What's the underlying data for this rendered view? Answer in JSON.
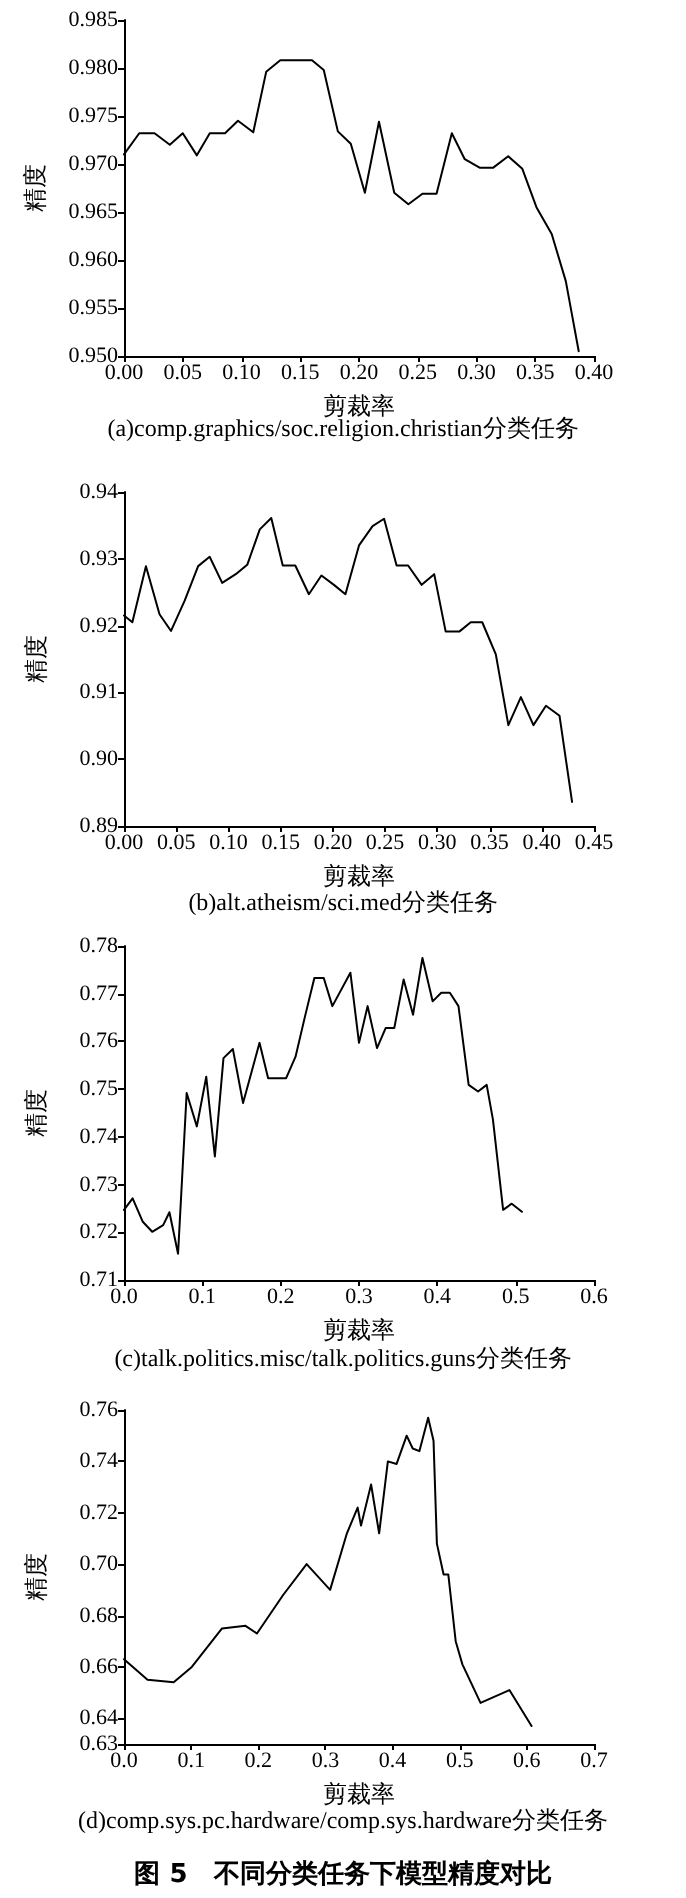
{
  "chart_data": [
    {
      "type": "line",
      "title": "(a)comp.graphics/soc.religion.christian分类任务",
      "xlabel": "剪裁率",
      "ylabel": "精度",
      "color": "#000000",
      "marker": "none",
      "line_style": "solid",
      "grid": false,
      "x": [
        0,
        0.013,
        0.026,
        0.039,
        0.05,
        0.062,
        0.073,
        0.086,
        0.097,
        0.11,
        0.121,
        0.133,
        0.16,
        0.17,
        0.182,
        0.193,
        0.205,
        0.217,
        0.23,
        0.242,
        0.254,
        0.266,
        0.279,
        0.29,
        0.303,
        0.314,
        0.327,
        0.339,
        0.351,
        0.364,
        0.376,
        0.387
      ],
      "values": [
        0.971,
        0.9732,
        0.9732,
        0.972,
        0.9732,
        0.9709,
        0.9732,
        0.9732,
        0.9745,
        0.9733,
        0.9796,
        0.9808,
        0.9808,
        0.9798,
        0.9734,
        0.9721,
        0.967,
        0.9744,
        0.967,
        0.9658,
        0.9669,
        0.9669,
        0.9732,
        0.9705,
        0.9696,
        0.9696,
        0.9708,
        0.9695,
        0.9655,
        0.9627,
        0.9578,
        0.9505
      ],
      "xlim": [
        0,
        0.4
      ],
      "xticks": [
        {
          "value": 0,
          "label": "0.00"
        },
        0.05,
        {
          "value": 0.1,
          "label": "0.10"
        },
        0.15,
        {
          "value": 0.2,
          "label": "0.20"
        },
        0.25,
        {
          "value": 0.3,
          "label": "0.30"
        },
        0.35,
        {
          "value": 0.4,
          "label": "0.40"
        }
      ],
      "ylim": [
        0.95,
        0.985
      ],
      "yticks": [
        {
          "value": 0.95,
          "label": "0.950"
        },
        0.955,
        {
          "value": 0.96,
          "label": "0.960"
        },
        0.965,
        {
          "value": 0.97,
          "label": "0.970"
        },
        0.975,
        {
          "value": 0.98,
          "label": "0.980"
        },
        0.985
      ]
    },
    {
      "type": "line",
      "title": "(b)alt.atheism/sci.med分类任务",
      "xlabel": "剪裁率",
      "ylabel": "精度",
      "color": "#000000",
      "marker": "none",
      "line_style": "solid",
      "grid": false,
      "x": [
        0,
        0.008,
        0.021,
        0.034,
        0.045,
        0.058,
        0.071,
        0.082,
        0.094,
        0.107,
        0.118,
        0.13,
        0.141,
        0.152,
        0.164,
        0.177,
        0.189,
        0.201,
        0.212,
        0.225,
        0.238,
        0.249,
        0.261,
        0.272,
        0.285,
        0.297,
        0.308,
        0.321,
        0.332,
        0.343,
        0.356,
        0.368,
        0.38,
        0.392,
        0.404,
        0.417,
        0.429
      ],
      "values": [
        0.9215,
        0.9205,
        0.9289,
        0.9217,
        0.9192,
        0.9237,
        0.9289,
        0.9303,
        0.9264,
        0.9277,
        0.9291,
        0.9344,
        0.9361,
        0.929,
        0.929,
        0.9247,
        0.9275,
        0.9261,
        0.9247,
        0.932,
        0.9349,
        0.936,
        0.929,
        0.929,
        0.9261,
        0.9277,
        0.9191,
        0.9191,
        0.9205,
        0.9205,
        0.9157,
        0.9051,
        0.9093,
        0.9051,
        0.908,
        0.9065,
        0.8936
      ],
      "xlim": [
        0,
        0.45
      ],
      "xticks": [
        {
          "value": 0,
          "label": "0.00"
        },
        0.05,
        {
          "value": 0.1,
          "label": "0.10"
        },
        0.15,
        {
          "value": 0.2,
          "label": "0.20"
        },
        0.25,
        {
          "value": 0.3,
          "label": "0.30"
        },
        0.35,
        {
          "value": 0.4,
          "label": "0.40"
        },
        0.45
      ],
      "ylim": [
        0.89,
        0.94
      ],
      "yticks": [
        0.89,
        {
          "value": 0.9,
          "label": "0.90"
        },
        0.91,
        0.92,
        0.93,
        0.94
      ]
    },
    {
      "type": "line",
      "title": "(c)talk.politics.misc/talk.politics.guns分类任务",
      "xlabel": "剪裁率",
      "ylabel": "精度",
      "color": "#000000",
      "marker": "none",
      "line_style": "solid",
      "grid": false,
      "x": [
        0,
        0.011,
        0.024,
        0.036,
        0.05,
        0.058,
        0.069,
        0.08,
        0.093,
        0.105,
        0.116,
        0.127,
        0.139,
        0.152,
        0.173,
        0.184,
        0.207,
        0.219,
        0.231,
        0.243,
        0.255,
        0.266,
        0.289,
        0.3,
        0.311,
        0.323,
        0.334,
        0.345,
        0.357,
        0.369,
        0.381,
        0.394,
        0.405,
        0.416,
        0.427,
        0.44,
        0.452,
        0.463,
        0.471,
        0.484,
        0.495,
        0.508
      ],
      "values": [
        0.7247,
        0.7271,
        0.7222,
        0.7201,
        0.7215,
        0.7242,
        0.7155,
        0.7492,
        0.7422,
        0.7526,
        0.7359,
        0.7565,
        0.7584,
        0.7471,
        0.7597,
        0.7523,
        0.7523,
        0.7568,
        0.7652,
        0.7733,
        0.7733,
        0.7674,
        0.7744,
        0.7597,
        0.7674,
        0.7586,
        0.7628,
        0.7628,
        0.773,
        0.7656,
        0.7775,
        0.7684,
        0.7702,
        0.7702,
        0.7674,
        0.7509,
        0.7495,
        0.7509,
        0.7436,
        0.7247,
        0.726,
        0.7243
      ],
      "xlim": [
        0,
        0.6
      ],
      "xticks": [
        {
          "value": 0,
          "label": "0.0"
        },
        0.1,
        0.2,
        0.3,
        0.4,
        0.5,
        0.6
      ],
      "ylim": [
        0.71,
        0.78
      ],
      "yticks": [
        0.71,
        0.72,
        0.73,
        0.74,
        0.75,
        0.76,
        0.77,
        0.78
      ]
    },
    {
      "type": "line",
      "title": "(d)comp.sys.pc.hardware/comp.sys.hardware分类任务",
      "xlabel": "剪裁率",
      "ylabel": "精度",
      "color": "#000000",
      "marker": "none",
      "line_style": "solid",
      "grid": false,
      "annotations": [
        "图 5　不同分类任务下模型精度对比"
      ],
      "x": [
        0,
        0.035,
        0.074,
        0.101,
        0.146,
        0.181,
        0.198,
        0.237,
        0.272,
        0.307,
        0.332,
        0.348,
        0.353,
        0.368,
        0.38,
        0.393,
        0.406,
        0.421,
        0.43,
        0.44,
        0.453,
        0.461,
        0.466,
        0.476,
        0.483,
        0.494,
        0.504,
        0.531,
        0.574,
        0.607
      ],
      "values": [
        0.663,
        0.655,
        0.654,
        0.66,
        0.675,
        0.676,
        0.673,
        0.688,
        0.7,
        0.69,
        0.712,
        0.722,
        0.715,
        0.731,
        0.712,
        0.74,
        0.739,
        0.75,
        0.745,
        0.744,
        0.757,
        0.748,
        0.708,
        0.696,
        0.696,
        0.67,
        0.661,
        0.646,
        0.651,
        0.637
      ],
      "xlim": [
        0,
        0.7
      ],
      "xticks": [
        {
          "value": 0,
          "label": "0.0"
        },
        0.1,
        0.2,
        0.3,
        0.4,
        0.5,
        0.6,
        0.7
      ],
      "ylim": [
        0.63,
        0.76
      ],
      "yticks": [
        0.63,
        0.64,
        0.66,
        0.68,
        {
          "value": 0.7,
          "label": "0.70"
        },
        0.72,
        0.74,
        0.76
      ]
    }
  ]
}
